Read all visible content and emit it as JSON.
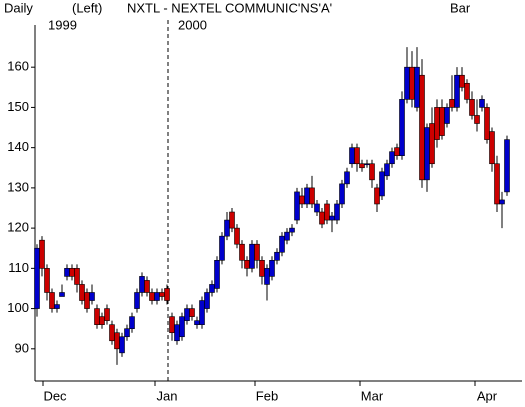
{
  "header": {
    "period": "Daily",
    "scale": "(Left)",
    "symbol": "NXTL - NEXTEL COMMUNIC'NS'A'",
    "style": "Bar"
  },
  "chart_data": {
    "type": "candlestick",
    "up_color": "#0000cc",
    "down_color": "#cc0000",
    "year_labels": [
      {
        "value": 3,
        "label": "1999"
      },
      {
        "value": 29,
        "label": "2000"
      }
    ],
    "year_divider": 26.2,
    "xlim": [
      -0.5,
      97
    ],
    "xticks": [
      {
        "value": 3.6,
        "label": "Dec"
      },
      {
        "value": 26,
        "label": "Jan"
      },
      {
        "value": 46,
        "label": "Feb"
      },
      {
        "value": 67,
        "label": "Mar"
      },
      {
        "value": 90,
        "label": "Apr"
      }
    ],
    "ylim": [
      82,
      168
    ],
    "yticks": [
      90,
      100,
      110,
      120,
      130,
      140,
      150,
      160
    ],
    "open": [
      100,
      117,
      110,
      104,
      100,
      103,
      108,
      110,
      110,
      106,
      104,
      102,
      100,
      98,
      100,
      96,
      94,
      89,
      93,
      95,
      100,
      104,
      107,
      104,
      102,
      104,
      105,
      98,
      92,
      93,
      97,
      100,
      96,
      96,
      100,
      104,
      105,
      112,
      118,
      124,
      120,
      116,
      112,
      110,
      116,
      112,
      106,
      108,
      112,
      114,
      117,
      119,
      122,
      128,
      126,
      130,
      124,
      124,
      126,
      122,
      122,
      126,
      131,
      136,
      140,
      136,
      136,
      136,
      130,
      128,
      133,
      136,
      140,
      138,
      152,
      160,
      150,
      158,
      132,
      146,
      150,
      150,
      146,
      152,
      150,
      158,
      156,
      152,
      148,
      150,
      150,
      144,
      136,
      126,
      129
    ],
    "high": [
      116,
      118,
      111,
      105,
      102,
      106,
      111,
      111,
      111,
      107,
      105,
      106,
      101,
      99,
      101,
      97,
      95,
      94,
      96,
      99,
      105,
      109,
      108,
      105,
      105,
      105,
      106,
      99,
      97,
      99,
      101,
      101,
      98,
      103,
      105,
      107,
      113,
      119,
      124,
      125,
      121,
      117,
      113,
      117,
      117,
      113,
      111,
      113,
      115,
      119,
      120,
      121,
      130,
      130,
      131,
      133,
      127,
      125,
      127,
      124,
      127,
      132,
      135,
      141,
      141,
      137,
      137,
      137,
      131,
      135,
      137,
      140,
      141,
      154,
      165,
      164,
      165,
      162,
      146,
      150,
      152,
      152,
      151,
      158,
      160,
      160,
      157,
      154,
      152,
      153,
      151,
      145,
      138,
      129,
      143
    ],
    "low": [
      98,
      108,
      102,
      99,
      99,
      103,
      107,
      107,
      104,
      101,
      99,
      101,
      95,
      95,
      96,
      91,
      86,
      88,
      92,
      94,
      99,
      103,
      103,
      101,
      101,
      102,
      101,
      92,
      91,
      92,
      96,
      97,
      95,
      95,
      99,
      103,
      104,
      111,
      117,
      119,
      115,
      110,
      108,
      109,
      110,
      106,
      102,
      107,
      111,
      113,
      116,
      118,
      121,
      125,
      125,
      125,
      123,
      120,
      121,
      119,
      121,
      125,
      130,
      135,
      134,
      134,
      135,
      130,
      124,
      127,
      132,
      135,
      137,
      137,
      151,
      150,
      149,
      130,
      129,
      135,
      140,
      142,
      145,
      149,
      149,
      154,
      151,
      147,
      144,
      149,
      141,
      134,
      124,
      120,
      128
    ],
    "close": [
      115,
      110,
      104,
      100,
      101,
      104,
      110,
      108,
      106,
      102,
      100,
      104,
      96,
      96,
      97,
      92,
      90,
      93,
      95,
      98,
      104,
      108,
      104,
      102,
      104,
      103,
      102,
      94,
      96,
      98,
      100,
      98,
      97,
      102,
      104,
      106,
      112,
      118,
      122,
      120,
      116,
      112,
      110,
      116,
      112,
      108,
      110,
      112,
      114,
      118,
      119,
      120,
      129,
      126,
      130,
      126,
      126,
      121,
      122,
      123,
      126,
      131,
      134,
      140,
      136,
      135,
      136,
      132,
      126,
      134,
      136,
      139,
      138,
      152,
      160,
      152,
      160,
      132,
      145,
      136,
      142,
      143,
      150,
      150,
      158,
      155,
      152,
      148,
      146,
      152,
      142,
      136,
      126,
      127,
      142
    ]
  }
}
